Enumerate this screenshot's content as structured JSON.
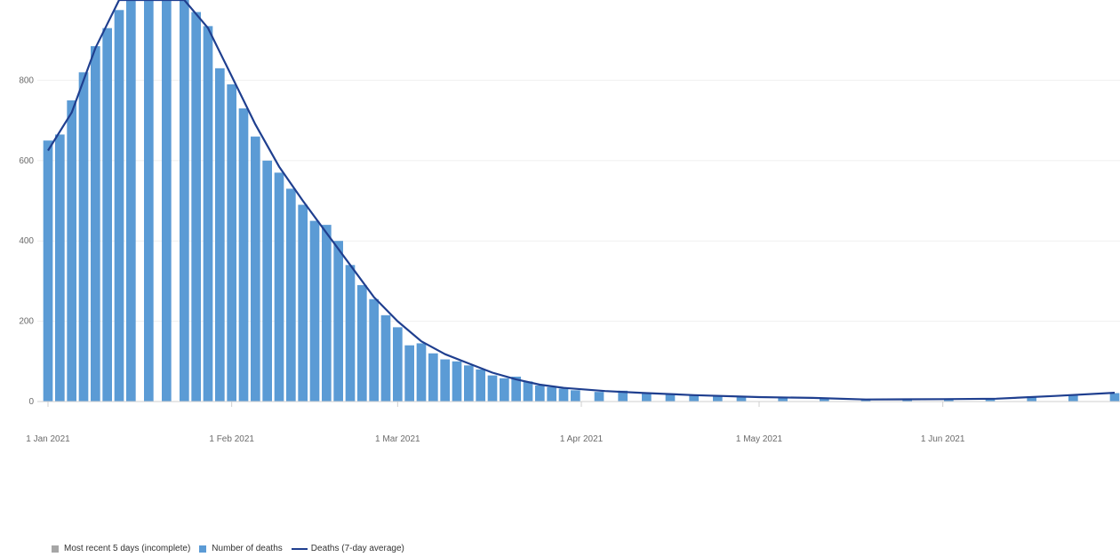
{
  "chart_data": {
    "type": "bar",
    "title": "",
    "xlabel": "",
    "ylabel": "",
    "ylim": [
      0,
      1000
    ],
    "xlim": [
      "2021-01-01",
      "2021-06-30"
    ],
    "grid": true,
    "legend_position": "bottom-left",
    "y_ticks": [
      "0",
      "200",
      "400",
      "600",
      "800"
    ],
    "x_ticks": [
      {
        "date": "2021-01-01",
        "label": "1 Jan 2021"
      },
      {
        "date": "2021-02-01",
        "label": "1 Feb 2021"
      },
      {
        "date": "2021-03-01",
        "label": "1 Mar 2021"
      },
      {
        "date": "2021-04-01",
        "label": "1 Apr 2021"
      },
      {
        "date": "2021-05-01",
        "label": "1 May 2021"
      },
      {
        "date": "2021-06-01",
        "label": "1 Jun 2021"
      }
    ],
    "bar_series": {
      "name": "Number of deaths",
      "color": "#5b9bd5",
      "points": [
        [
          "2021-01-01",
          650
        ],
        [
          "2021-01-03",
          665
        ],
        [
          "2021-01-05",
          750
        ],
        [
          "2021-01-07",
          820
        ],
        [
          "2021-01-09",
          885
        ],
        [
          "2021-01-11",
          930
        ],
        [
          "2021-01-13",
          975
        ],
        [
          "2021-01-15",
          1000
        ],
        [
          "2021-01-18",
          1000
        ],
        [
          "2021-01-21",
          1000
        ],
        [
          "2021-01-24",
          1000
        ],
        [
          "2021-01-26",
          970
        ],
        [
          "2021-01-28",
          935
        ],
        [
          "2021-01-30",
          830
        ],
        [
          "2021-02-01",
          790
        ],
        [
          "2021-02-03",
          730
        ],
        [
          "2021-02-05",
          660
        ],
        [
          "2021-02-07",
          600
        ],
        [
          "2021-02-09",
          570
        ],
        [
          "2021-02-11",
          530
        ],
        [
          "2021-02-13",
          490
        ],
        [
          "2021-02-15",
          450
        ],
        [
          "2021-02-17",
          440
        ],
        [
          "2021-02-19",
          400
        ],
        [
          "2021-02-21",
          340
        ],
        [
          "2021-02-23",
          290
        ],
        [
          "2021-02-25",
          255
        ],
        [
          "2021-02-27",
          215
        ],
        [
          "2021-03-01",
          185
        ],
        [
          "2021-03-03",
          140
        ],
        [
          "2021-03-05",
          145
        ],
        [
          "2021-03-07",
          120
        ],
        [
          "2021-03-09",
          105
        ],
        [
          "2021-03-11",
          100
        ],
        [
          "2021-03-13",
          90
        ],
        [
          "2021-03-15",
          80
        ],
        [
          "2021-03-17",
          65
        ],
        [
          "2021-03-19",
          58
        ],
        [
          "2021-03-21",
          62
        ],
        [
          "2021-03-23",
          50
        ],
        [
          "2021-03-25",
          40
        ],
        [
          "2021-03-27",
          36
        ],
        [
          "2021-03-29",
          32
        ],
        [
          "2021-03-31",
          28
        ],
        [
          "2021-04-04",
          24
        ],
        [
          "2021-04-08",
          27
        ],
        [
          "2021-04-12",
          20
        ],
        [
          "2021-04-16",
          17
        ],
        [
          "2021-04-20",
          15
        ],
        [
          "2021-04-24",
          13
        ],
        [
          "2021-04-28",
          11
        ],
        [
          "2021-05-05",
          9
        ],
        [
          "2021-05-12",
          8
        ],
        [
          "2021-05-19",
          6
        ],
        [
          "2021-05-26",
          6
        ],
        [
          "2021-06-02",
          6
        ],
        [
          "2021-06-09",
          8
        ],
        [
          "2021-06-16",
          13
        ],
        [
          "2021-06-23",
          17
        ],
        [
          "2021-06-30",
          21
        ]
      ]
    },
    "line_series": {
      "name": "Deaths (7-day average)",
      "color": "#1f3f8f",
      "points": [
        [
          "2021-01-01",
          625
        ],
        [
          "2021-01-05",
          720
        ],
        [
          "2021-01-09",
          880
        ],
        [
          "2021-01-13",
          1000
        ],
        [
          "2021-01-18",
          1000
        ],
        [
          "2021-01-24",
          1000
        ],
        [
          "2021-01-28",
          930
        ],
        [
          "2021-02-01",
          810
        ],
        [
          "2021-02-05",
          690
        ],
        [
          "2021-02-09",
          585
        ],
        [
          "2021-02-13",
          500
        ],
        [
          "2021-02-17",
          420
        ],
        [
          "2021-02-21",
          340
        ],
        [
          "2021-02-25",
          260
        ],
        [
          "2021-03-01",
          200
        ],
        [
          "2021-03-05",
          150
        ],
        [
          "2021-03-09",
          118
        ],
        [
          "2021-03-13",
          95
        ],
        [
          "2021-03-17",
          72
        ],
        [
          "2021-03-21",
          55
        ],
        [
          "2021-03-25",
          42
        ],
        [
          "2021-03-29",
          34
        ],
        [
          "2021-04-05",
          26
        ],
        [
          "2021-04-12",
          21
        ],
        [
          "2021-04-20",
          16
        ],
        [
          "2021-05-01",
          11
        ],
        [
          "2021-05-10",
          9
        ],
        [
          "2021-05-19",
          5
        ],
        [
          "2021-06-01",
          6
        ],
        [
          "2021-06-10",
          7
        ],
        [
          "2021-06-20",
          14
        ],
        [
          "2021-06-30",
          22
        ]
      ]
    },
    "legend": [
      {
        "label": "Most recent 5 days (incomplete)",
        "color": "#a6a6a6",
        "shape": "square"
      },
      {
        "label": "Number of deaths",
        "color": "#5b9bd5",
        "shape": "square"
      },
      {
        "label": "Deaths (7-day average)",
        "color": "#1f3f8f",
        "shape": "line"
      }
    ]
  }
}
